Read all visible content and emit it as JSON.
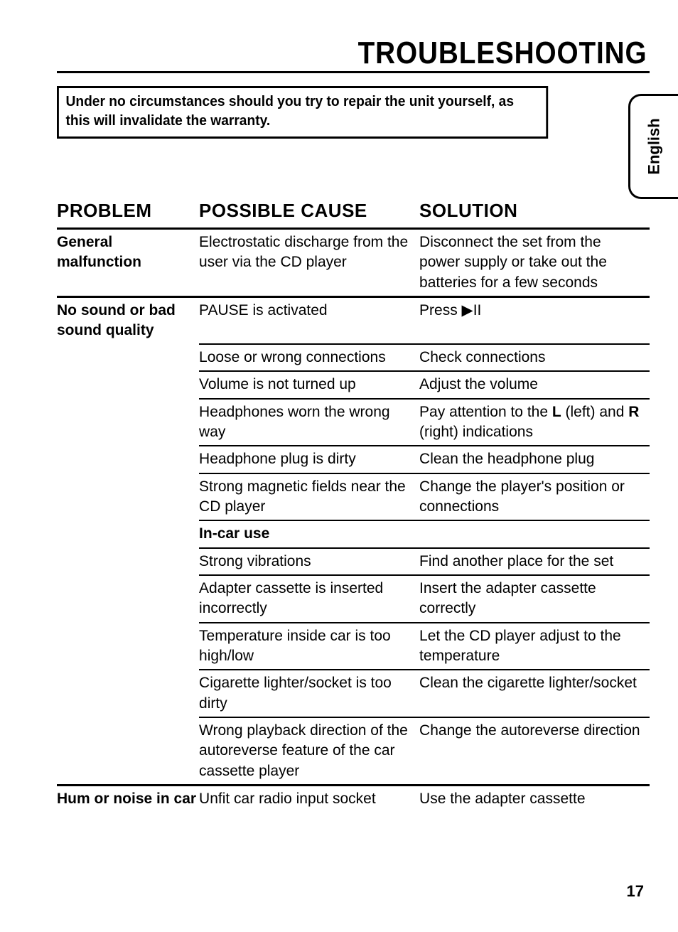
{
  "title": "TROUBLESHOOTING",
  "warning": "Under no circumstances should you try to repair the unit yourself, as this will invalidate the warranty.",
  "language_tab": "English",
  "page_number": "17",
  "headers": {
    "problem": "PROBLEM",
    "cause": "POSSIBLE CAUSE",
    "solution": "SOLUTION"
  },
  "sections": [
    {
      "problem": "General malfunction",
      "rows": [
        {
          "cause": "Electrostatic discharge from the user via the CD player",
          "solution": "Disconnect the set from the power supply or take out the batteries for a few seconds",
          "separator": "heavy"
        }
      ]
    },
    {
      "problem": "No sound or bad sound quality",
      "rows": [
        {
          "cause": "PAUSE is activated",
          "solution": "Press ▶II",
          "separator": "light"
        },
        {
          "cause": "Loose or wrong connections",
          "solution": "Check connections",
          "separator": "light"
        },
        {
          "cause": "Volume is not turned up",
          "solution": "Adjust the volume",
          "separator": "light"
        },
        {
          "cause": "Headphones worn the wrong way",
          "solution_html": "Pay attention to the <b>L</b> (left) and <b>R</b> (right) indications",
          "separator": "light"
        },
        {
          "cause": "Headphone plug is dirty",
          "solution": "Clean the headphone plug",
          "separator": "light"
        },
        {
          "cause": "Strong magnetic fields near the CD player",
          "solution": "Change the player's position or connections",
          "separator": "light"
        },
        {
          "cause_html": "<span class='subhead'>In-car use</span>",
          "solution": "",
          "separator": "light"
        },
        {
          "cause": "Strong vibrations",
          "solution": "Find another place for the set",
          "separator": "light"
        },
        {
          "cause": "Adapter cassette is inserted incorrectly",
          "solution": "Insert the adapter cassette correctly",
          "separator": "light"
        },
        {
          "cause": "Temperature inside car is too high/low",
          "solution": "Let the CD player adjust to the temperature",
          "separator": "light"
        },
        {
          "cause": "Cigarette lighter/socket is too dirty",
          "solution": "Clean the cigarette lighter/socket",
          "separator": "light"
        },
        {
          "cause": "Wrong playback direction of the autoreverse feature of the car cassette player",
          "solution": "Change the autoreverse direction",
          "separator": "heavy"
        }
      ]
    },
    {
      "problem": "Hum or noise in car",
      "inline_problem": true,
      "rows": [
        {
          "cause": "Unfit car radio input socket",
          "solution": "Use the adapter cassette",
          "separator": "none"
        }
      ]
    }
  ]
}
